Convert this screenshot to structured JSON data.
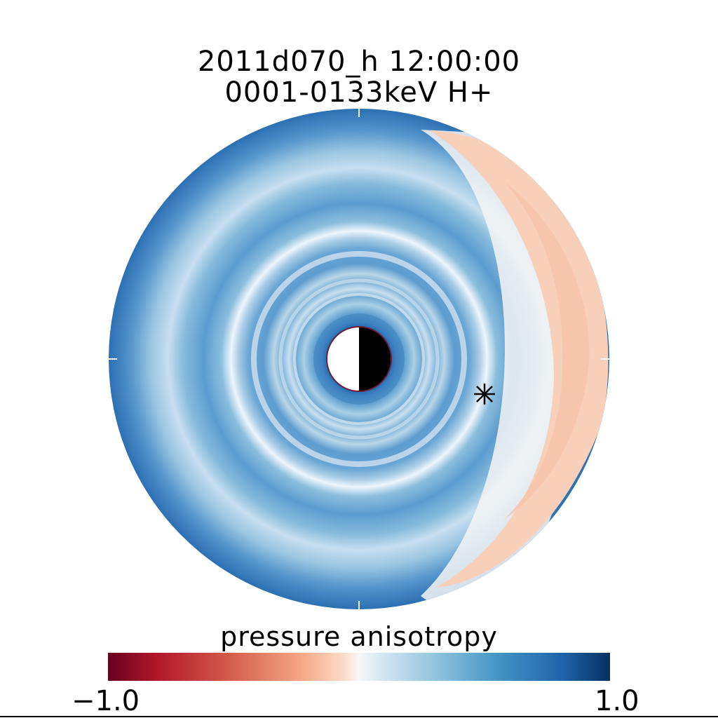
{
  "chart_data": {
    "type": "heatmap",
    "title": "2011d070_h  12:00:00",
    "subtitle": "0001-0133keV H+",
    "colorbar": {
      "label": "pressure anisotropy",
      "min_label": "−1.0",
      "max_label": "1.0",
      "range": [
        -1.0,
        1.0
      ],
      "colormap": "red-white-blue"
    },
    "marker_symbol": "asterisk",
    "colors": {
      "min": "#67001f",
      "mid": "#f7f7f7",
      "max": "#053061"
    }
  }
}
